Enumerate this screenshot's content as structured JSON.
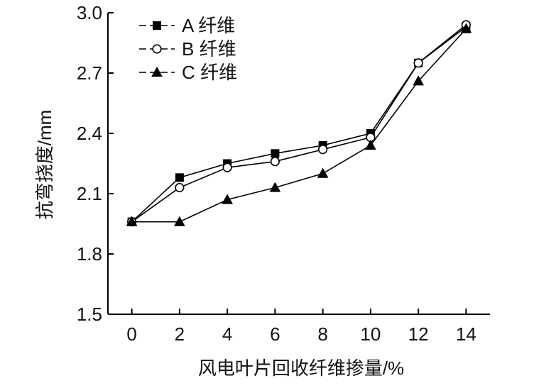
{
  "chart_data": {
    "type": "line",
    "xlabel": "风电叶片回收纤维掺量/%",
    "ylabel": "抗弯挠度/mm",
    "x": [
      0,
      2,
      4,
      6,
      8,
      10,
      12,
      14
    ],
    "xlim": [
      -1,
      15
    ],
    "ylim": [
      1.5,
      3.0
    ],
    "xticks": [
      "0",
      "2",
      "4",
      "6",
      "8",
      "10",
      "12",
      "14"
    ],
    "yticks": [
      "1.5",
      "1.8",
      "2.1",
      "2.4",
      "2.7",
      "3.0"
    ],
    "grid": false,
    "legend_position": "top-left",
    "series": [
      {
        "name": "A 纤维",
        "marker": "filled-square",
        "values": [
          1.96,
          2.18,
          2.25,
          2.3,
          2.34,
          2.4,
          2.75,
          2.93
        ]
      },
      {
        "name": "B 纤维",
        "marker": "open-circle",
        "values": [
          1.96,
          2.13,
          2.23,
          2.26,
          2.32,
          2.38,
          2.75,
          2.94
        ]
      },
      {
        "name": "C 纤维",
        "marker": "filled-triangle",
        "values": [
          1.96,
          1.96,
          2.07,
          2.13,
          2.2,
          2.34,
          2.66,
          2.92
        ]
      }
    ]
  },
  "colors": {
    "line": "#000000",
    "axis": "#000000",
    "background": "#ffffff"
  }
}
